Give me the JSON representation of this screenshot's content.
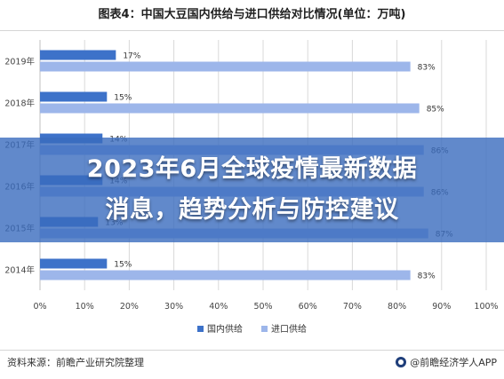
{
  "title": "图表4：中国大豆国内供给与进口供给对比情况(单位：万吨)",
  "banner": {
    "line1": "2023年6月全球疫情最新数据",
    "line2": "消息，趋势分析与防控建议"
  },
  "footer": {
    "source": "资料来源：前瞻产业研究院整理",
    "brand": "@前瞻经济学人APP"
  },
  "colors": {
    "domestic": "#3d72c9",
    "import": "#9db6ea",
    "banner": "#3a6cbe"
  },
  "chart_data": {
    "type": "bar",
    "orientation": "horizontal",
    "stacked": false,
    "categories": [
      "2019年",
      "2018年",
      "2017年",
      "2016年",
      "2015年",
      "2014年"
    ],
    "series": [
      {
        "name": "国内供给",
        "values": [
          17,
          15,
          14,
          14,
          13,
          15
        ]
      },
      {
        "name": "进口供给",
        "values": [
          83,
          85,
          86,
          86,
          87,
          83
        ]
      }
    ],
    "data_labels": {
      "国内供给": [
        "17%",
        "15%",
        "14%",
        "14%",
        "13%",
        "15%"
      ],
      "进口供给": [
        "83%",
        "85%",
        "86%",
        "86%",
        "87%",
        "83%"
      ]
    },
    "xlim": [
      0,
      100
    ],
    "xticks": [
      "0%",
      "10%",
      "20%",
      "30%",
      "40%",
      "50%",
      "60%",
      "70%",
      "80%",
      "90%",
      "100%"
    ],
    "grid": "vertical",
    "legend_position": "bottom"
  }
}
